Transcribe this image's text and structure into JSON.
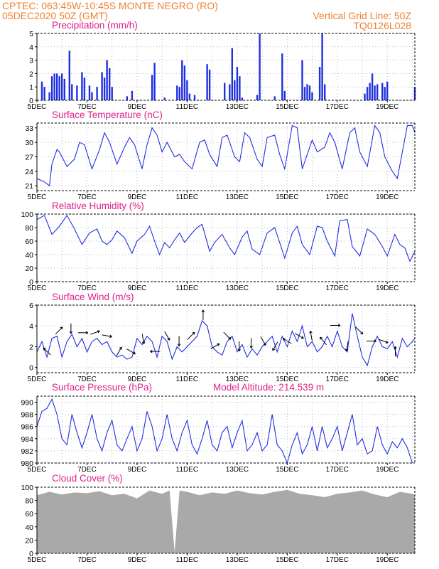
{
  "header": {
    "line1_left": "CPTEC:   063:45W-10:45S   MONTE NEGRO (RO)",
    "line2_left": "05DEC2020 50Z (GMT)",
    "line2_right": "Vertical Grid Line: 50Z",
    "line3_right": "TQ0126L028"
  },
  "colors": {
    "header": "#f08030",
    "title": "#e0208c",
    "series": "#2030e0",
    "cloud": "#a9a9a9"
  },
  "chart_data": [
    {
      "type": "bar",
      "title": "Precipitation (mm/h)",
      "ylim": [
        0,
        5
      ],
      "yticks": [
        "0",
        "1",
        "2",
        "3",
        "4",
        "5"
      ],
      "xticks": [
        "5DEC",
        "7DEC",
        "9DEC",
        "11DEC",
        "13DEC",
        "15DEC",
        "17DEC",
        "19DEC"
      ],
      "grid": true,
      "bars": [
        [
          5.2,
          1.4
        ],
        [
          5.3,
          1.0
        ],
        [
          5.5,
          0.6
        ],
        [
          5.6,
          1.8
        ],
        [
          5.7,
          2.0
        ],
        [
          5.8,
          2.0
        ],
        [
          5.9,
          1.8
        ],
        [
          6.0,
          2.0
        ],
        [
          6.1,
          1.6
        ],
        [
          6.3,
          3.7
        ],
        [
          6.4,
          1.2
        ],
        [
          6.6,
          1.1
        ],
        [
          6.8,
          2.1
        ],
        [
          6.9,
          1.7
        ],
        [
          7.1,
          1.1
        ],
        [
          7.2,
          0.6
        ],
        [
          7.4,
          1.0
        ],
        [
          7.6,
          2.1
        ],
        [
          7.7,
          1.7
        ],
        [
          7.8,
          3.0
        ],
        [
          7.9,
          2.4
        ],
        [
          8.0,
          1.0
        ],
        [
          8.6,
          0.3
        ],
        [
          8.8,
          0.7
        ],
        [
          9.6,
          1.9
        ],
        [
          9.7,
          2.8
        ],
        [
          10.1,
          0.2
        ],
        [
          10.6,
          1.1
        ],
        [
          10.7,
          1.0
        ],
        [
          10.8,
          3.0
        ],
        [
          10.9,
          2.6
        ],
        [
          11.0,
          1.5
        ],
        [
          11.1,
          0.5
        ],
        [
          11.3,
          0.4
        ],
        [
          11.8,
          2.7
        ],
        [
          11.9,
          2.3
        ],
        [
          12.5,
          1.3
        ],
        [
          12.7,
          1.2
        ],
        [
          12.8,
          3.9
        ],
        [
          12.9,
          1.5
        ],
        [
          13.0,
          2.5
        ],
        [
          13.1,
          1.8
        ],
        [
          13.2,
          0.2
        ],
        [
          13.8,
          0.4
        ],
        [
          13.9,
          5.0
        ],
        [
          14.5,
          0.3
        ],
        [
          14.8,
          3.5
        ],
        [
          14.9,
          0.7
        ],
        [
          15.6,
          3.0
        ],
        [
          15.7,
          1.0
        ],
        [
          15.8,
          1.2
        ],
        [
          15.9,
          1.1
        ],
        [
          16.0,
          0.6
        ],
        [
          16.3,
          2.5
        ],
        [
          16.4,
          5.0
        ],
        [
          16.5,
          1.2
        ],
        [
          18.1,
          0.5
        ],
        [
          18.2,
          1.0
        ],
        [
          18.3,
          1.3
        ],
        [
          18.4,
          2.0
        ],
        [
          18.5,
          1.1
        ],
        [
          18.6,
          1.2
        ],
        [
          18.8,
          1.3
        ],
        [
          18.9,
          1.0
        ],
        [
          19.0,
          1.4
        ],
        [
          20.1,
          1.0
        ]
      ]
    },
    {
      "type": "line",
      "title": "Surface Temperature (nC)",
      "ylim": [
        20,
        34
      ],
      "yticks": [
        "21",
        "24",
        "27",
        "30",
        "33"
      ],
      "xticks": [
        "5DEC",
        "7DEC",
        "9DEC",
        "11DEC",
        "13DEC",
        "15DEC",
        "17DEC",
        "19DEC"
      ],
      "grid": true,
      "x": [
        5.0,
        5.3,
        5.5,
        5.6,
        5.8,
        5.9,
        6.2,
        6.5,
        6.7,
        6.9,
        7.2,
        7.5,
        7.7,
        7.9,
        8.2,
        8.5,
        8.7,
        8.9,
        9.2,
        9.4,
        9.6,
        9.8,
        10.0,
        10.2,
        10.5,
        10.7,
        10.9,
        11.2,
        11.5,
        11.7,
        11.9,
        12.2,
        12.4,
        12.6,
        12.9,
        13.1,
        13.3,
        13.5,
        13.8,
        14.0,
        14.2,
        14.5,
        14.7,
        14.9,
        15.2,
        15.4,
        15.6,
        15.9,
        16.0,
        16.2,
        16.5,
        16.7,
        16.9,
        17.2,
        17.5,
        17.7,
        17.9,
        18.2,
        18.5,
        18.7,
        18.9,
        19.2,
        19.4,
        19.6,
        19.8,
        20.0,
        20.1
      ],
      "y": [
        22.5,
        21.8,
        21.0,
        25.5,
        28.5,
        28.0,
        25.0,
        26.5,
        30.0,
        29.5,
        24.5,
        28.5,
        32.0,
        30.0,
        25.5,
        29.0,
        31.0,
        29.5,
        24.5,
        29.5,
        33.0,
        31.5,
        28.0,
        30.0,
        27.0,
        27.5,
        26.0,
        24.5,
        30.0,
        30.5,
        27.5,
        25.0,
        31.0,
        31.5,
        27.0,
        26.0,
        32.0,
        31.0,
        26.5,
        25.0,
        31.0,
        31.5,
        27.5,
        24.5,
        33.5,
        33.0,
        24.5,
        29.0,
        30.5,
        28.0,
        29.0,
        32.0,
        30.0,
        24.5,
        32.0,
        33.0,
        28.0,
        25.0,
        33.5,
        32.0,
        27.0,
        24.0,
        22.5,
        28.0,
        33.5,
        33.5,
        32.0
      ]
    },
    {
      "type": "line",
      "title": "Relative Humidity (%)",
      "ylim": [
        0,
        100
      ],
      "yticks": [
        "0",
        "20",
        "40",
        "60",
        "80",
        "100"
      ],
      "xticks": [
        "5DEC",
        "7DEC",
        "9DEC",
        "11DEC",
        "13DEC",
        "15DEC",
        "17DEC",
        "19DEC"
      ],
      "grid": true,
      "x": [
        5.0,
        5.3,
        5.6,
        5.9,
        6.2,
        6.5,
        6.8,
        7.1,
        7.4,
        7.6,
        7.8,
        8.0,
        8.2,
        8.5,
        8.8,
        9.0,
        9.3,
        9.5,
        9.7,
        9.9,
        10.1,
        10.3,
        10.5,
        10.7,
        10.9,
        11.2,
        11.4,
        11.6,
        11.9,
        12.1,
        12.4,
        12.7,
        12.9,
        13.2,
        13.4,
        13.6,
        13.9,
        14.2,
        14.5,
        14.7,
        14.9,
        15.2,
        15.4,
        15.6,
        15.9,
        16.2,
        16.4,
        16.6,
        16.9,
        17.1,
        17.4,
        17.6,
        17.9,
        18.2,
        18.5,
        18.8,
        19.0,
        19.3,
        19.5,
        19.7,
        19.9,
        20.1
      ],
      "y": [
        92,
        98,
        70,
        82,
        98,
        78,
        55,
        72,
        78,
        60,
        55,
        62,
        75,
        65,
        42,
        60,
        70,
        82,
        60,
        40,
        58,
        50,
        62,
        72,
        58,
        72,
        80,
        85,
        45,
        58,
        70,
        50,
        40,
        66,
        75,
        48,
        40,
        72,
        80,
        58,
        35,
        72,
        82,
        55,
        40,
        82,
        80,
        60,
        38,
        90,
        92,
        52,
        38,
        78,
        70,
        52,
        38,
        70,
        55,
        50,
        30,
        45
      ]
    },
    {
      "type": "line",
      "title": "Surface Wind (m/s)",
      "ylim": [
        -0.5,
        6
      ],
      "yticks": [
        "0",
        "2",
        "4",
        "6"
      ],
      "xticks": [
        "5DEC",
        "7DEC",
        "9DEC",
        "11DEC",
        "13DEC",
        "15DEC",
        "17DEC",
        "19DEC"
      ],
      "grid": true,
      "x": [
        5.0,
        5.2,
        5.4,
        5.6,
        5.8,
        6.0,
        6.2,
        6.4,
        6.6,
        6.8,
        7.0,
        7.2,
        7.4,
        7.6,
        7.8,
        8.0,
        8.2,
        8.4,
        8.6,
        8.8,
        9.0,
        9.2,
        9.4,
        9.6,
        9.8,
        10.0,
        10.2,
        10.4,
        10.6,
        10.8,
        11.0,
        11.2,
        11.4,
        11.6,
        11.8,
        12.0,
        12.2,
        12.4,
        12.6,
        12.8,
        13.0,
        13.2,
        13.4,
        13.6,
        13.8,
        14.0,
        14.2,
        14.4,
        14.6,
        14.8,
        15.0,
        15.2,
        15.4,
        15.6,
        15.8,
        16.0,
        16.2,
        16.4,
        16.6,
        16.8,
        17.0,
        17.2,
        17.4,
        17.6,
        17.8,
        18.0,
        18.2,
        18.4,
        18.6,
        18.8,
        19.0,
        19.2,
        19.4,
        19.6,
        19.8,
        20.0,
        20.1
      ],
      "y": [
        1.5,
        2.5,
        1.0,
        2.8,
        3.0,
        1.0,
        2.5,
        3.2,
        2.0,
        2.8,
        1.5,
        2.5,
        2.8,
        2.2,
        2.5,
        1.5,
        1.0,
        1.2,
        0.8,
        1.0,
        2.8,
        2.2,
        3.0,
        2.5,
        1.0,
        3.0,
        2.5,
        0.8,
        2.0,
        1.5,
        2.0,
        2.5,
        3.0,
        4.5,
        4.0,
        2.0,
        1.5,
        1.2,
        2.5,
        3.0,
        1.5,
        2.2,
        1.0,
        1.8,
        1.2,
        2.0,
        2.5,
        3.0,
        1.5,
        3.0,
        2.0,
        3.5,
        2.5,
        4.0,
        2.0,
        2.5,
        1.5,
        2.0,
        3.0,
        2.0,
        3.5,
        2.0,
        1.5,
        5.2,
        3.0,
        1.0,
        0.2,
        2.0,
        3.0,
        2.0,
        1.8,
        2.5,
        1.0,
        2.8,
        2.0,
        2.5,
        2.8
      ]
    },
    {
      "type": "line",
      "title": "Surface Pressure (hPa)",
      "subtitle": "Model Altitude: 214.539  m",
      "ylim": [
        980,
        991
      ],
      "yticks": [
        "980",
        "982",
        "984",
        "986",
        "988",
        "990"
      ],
      "xticks": [
        "5DEC",
        "7DEC",
        "9DEC",
        "11DEC",
        "13DEC",
        "15DEC",
        "17DEC",
        "19DEC"
      ],
      "grid": true,
      "x": [
        5.0,
        5.2,
        5.4,
        5.6,
        5.8,
        6.0,
        6.2,
        6.4,
        6.6,
        6.8,
        7.0,
        7.2,
        7.4,
        7.6,
        7.8,
        8.0,
        8.2,
        8.4,
        8.6,
        8.8,
        9.0,
        9.2,
        9.4,
        9.6,
        9.8,
        10.0,
        10.2,
        10.4,
        10.6,
        10.8,
        11.0,
        11.2,
        11.4,
        11.6,
        11.8,
        12.0,
        12.2,
        12.4,
        12.6,
        12.8,
        13.0,
        13.2,
        13.4,
        13.6,
        13.8,
        14.0,
        14.2,
        14.4,
        14.6,
        14.8,
        15.0,
        15.2,
        15.4,
        15.6,
        15.8,
        16.0,
        16.2,
        16.4,
        16.6,
        16.8,
        17.0,
        17.2,
        17.4,
        17.6,
        17.8,
        18.0,
        18.2,
        18.4,
        18.6,
        18.8,
        19.0,
        19.2,
        19.4,
        19.6,
        19.8,
        20.0
      ],
      "y": [
        986,
        988.5,
        989,
        990.5,
        988,
        984,
        983,
        988,
        985,
        982.5,
        985,
        988,
        984,
        982,
        985,
        987,
        983,
        982,
        984,
        986,
        982,
        984,
        988.5,
        986,
        982,
        984,
        988,
        984,
        982,
        985,
        987,
        983,
        981.5,
        984,
        987,
        983,
        982,
        985,
        986,
        982.5,
        985,
        987,
        982,
        983,
        985,
        982,
        983,
        988,
        983,
        982,
        980,
        983,
        985,
        981.5,
        983,
        986,
        982,
        986,
        982.5,
        984,
        986,
        982,
        985,
        988,
        983,
        984,
        981.5,
        982,
        986,
        983,
        981.5,
        983.5,
        982.5,
        984,
        982.5,
        979.5
      ]
    },
    {
      "type": "area",
      "title": "Cloud Cover (%)",
      "ylim": [
        0,
        100
      ],
      "yticks": [
        "0",
        "20",
        "40",
        "60",
        "80",
        "100"
      ],
      "xticks": [
        "5DEC",
        "7DEC",
        "9DEC",
        "11DEC",
        "13DEC",
        "15DEC",
        "17DEC",
        "19DEC"
      ],
      "grid": false,
      "x": [
        5.0,
        5.5,
        6.0,
        6.5,
        7.0,
        7.5,
        8.0,
        8.5,
        9.0,
        9.5,
        10.0,
        10.3,
        10.5,
        10.7,
        11.0,
        11.5,
        12.0,
        12.5,
        13.0,
        13.5,
        14.0,
        14.5,
        15.0,
        15.5,
        16.0,
        16.5,
        17.0,
        17.5,
        18.0,
        18.5,
        19.0,
        19.5,
        20.0,
        20.1
      ],
      "y": [
        88,
        93,
        89,
        92,
        91,
        94,
        88,
        90,
        83,
        95,
        90,
        95,
        2,
        95,
        93,
        88,
        92,
        90,
        95,
        91,
        89,
        93,
        96,
        90,
        88,
        85,
        90,
        92,
        95,
        89,
        85,
        93,
        90,
        88
      ]
    }
  ]
}
